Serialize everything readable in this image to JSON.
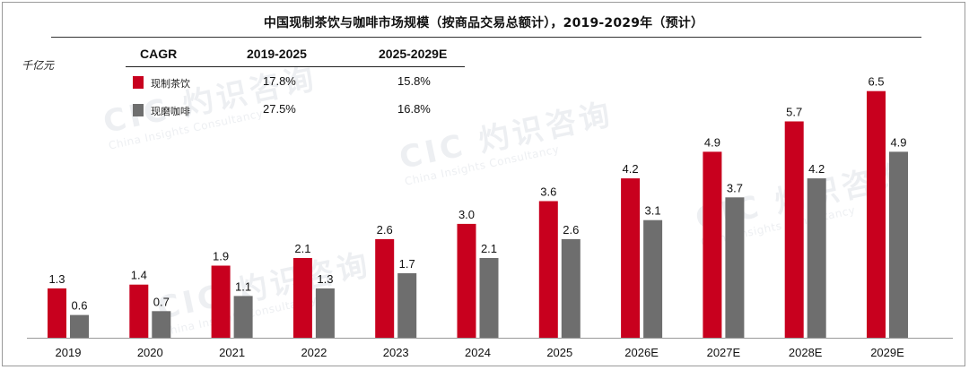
{
  "chart_data": {
    "type": "bar",
    "title": "中国现制茶饮与咖啡市场规模（按商品交易总额计），2019-2029年（预计）",
    "ylabel": "千亿元",
    "xlabel": "",
    "ylim": [
      0,
      7.2
    ],
    "categories": [
      "2019",
      "2020",
      "2021",
      "2022",
      "2023",
      "2024",
      "2025",
      "2026E",
      "2027E",
      "2028E",
      "2029E"
    ],
    "series": [
      {
        "name": "现制茶饮",
        "color": "#c8001e",
        "values": [
          1.3,
          1.4,
          1.9,
          2.1,
          2.6,
          3.0,
          3.6,
          4.2,
          4.9,
          5.7,
          6.5
        ]
      },
      {
        "name": "现磨咖啡",
        "color": "#6e6e6e",
        "values": [
          0.6,
          0.7,
          1.1,
          1.3,
          1.7,
          2.1,
          2.6,
          3.1,
          3.7,
          4.2,
          4.9
        ]
      }
    ],
    "cagr_table": {
      "header": [
        "CAGR",
        "2019-2025",
        "2025-2029E"
      ],
      "rows": [
        {
          "name": "现制茶饮",
          "v1": "17.8%",
          "v2": "15.8%"
        },
        {
          "name": "现磨咖啡",
          "v1": "27.5%",
          "v2": "16.8%"
        }
      ]
    }
  },
  "watermark": {
    "brand": "CIC",
    "name_cn": "灼识咨询",
    "name_en": "China Insights Consultancy"
  }
}
